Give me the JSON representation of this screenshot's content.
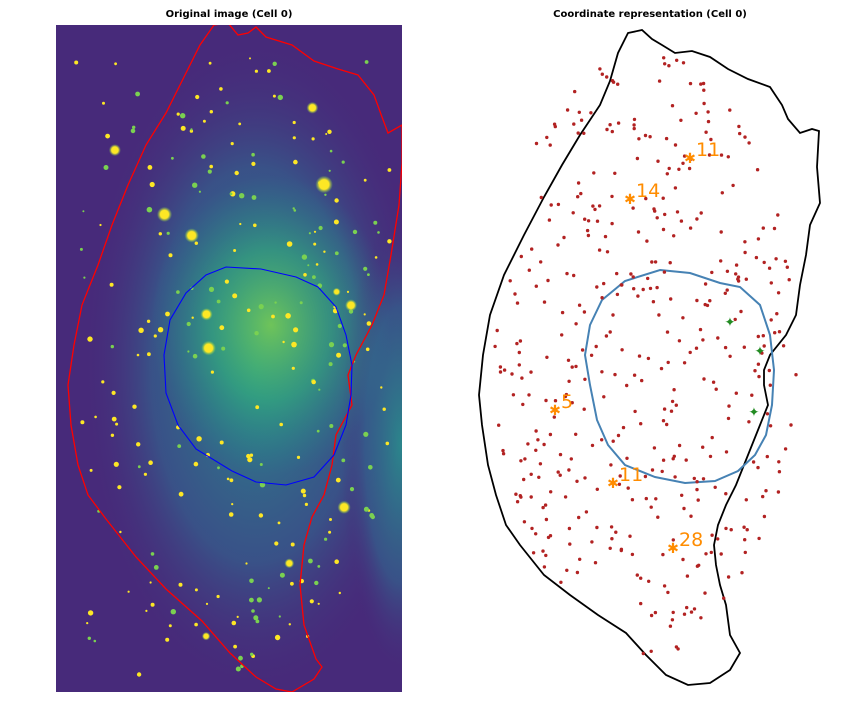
{
  "figure": {
    "left_title": "Original image (Cell 0)",
    "right_title": "Coordinate representation (Cell 0)"
  },
  "colors": {
    "background_dark": "#472a7a",
    "mid_teal": "#2a8a8c",
    "bright_green": "#7ad151",
    "spot_yellow": "#fde725",
    "cell_outline_red": "#ff0000",
    "nucleus_outline_blue": "#0000ff",
    "cell_outline_black": "#000000",
    "nucleus_outline_steel": "#4682b4",
    "spot_red": "#b22222",
    "cluster_orange": "#ff8c00",
    "marker_green": "#228b22"
  },
  "clusters": [
    {
      "label": "11"
    },
    {
      "label": "14"
    },
    {
      "label": "5"
    },
    {
      "label": "11"
    },
    {
      "label": "28"
    }
  ]
}
